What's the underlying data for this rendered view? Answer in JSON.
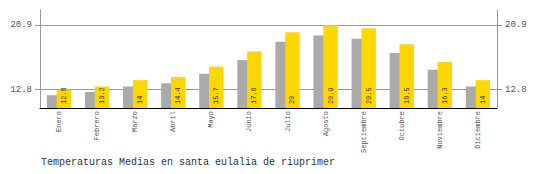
{
  "chart_data": {
    "type": "bar",
    "title": "Temperaturas Medias en santa eulalia de riuprimer",
    "categories": [
      "Enero",
      "Febrero",
      "Marzo",
      "Abril",
      "Mayo",
      "Junio",
      "Julio",
      "Agosto",
      "Septiembre",
      "Octubre",
      "Noviembre",
      "Diciembre"
    ],
    "series": [
      {
        "color": "#aaaaaa",
        "values": [
          12.1,
          12.5,
          13.2,
          13.6,
          14.8,
          16.5,
          18.8,
          19.6,
          19.2,
          17.4,
          15.3,
          13.2
        ]
      },
      {
        "color": "#FFD700",
        "data_labels": true,
        "values": [
          12.8,
          13.2,
          14.0,
          14.4,
          15.7,
          17.6,
          20.0,
          20.9,
          20.5,
          18.5,
          16.3,
          14.0
        ]
      }
    ],
    "ylim": [
      10.5,
      22.8
    ],
    "yticks": [
      12.8,
      20.9
    ],
    "y2lim": [
      10.5,
      22.8
    ],
    "y2ticks": [
      12.8,
      20.9
    ],
    "grid": true
  }
}
